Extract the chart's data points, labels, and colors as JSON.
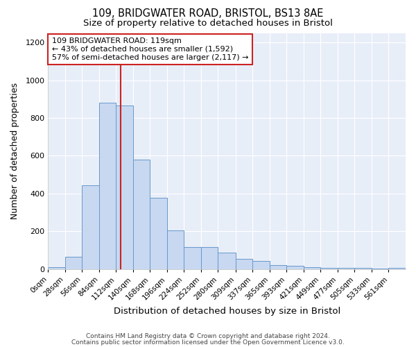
{
  "title1": "109, BRIDGWATER ROAD, BRISTOL, BS13 8AE",
  "title2": "Size of property relative to detached houses in Bristol",
  "xlabel": "Distribution of detached houses by size in Bristol",
  "ylabel": "Number of detached properties",
  "bar_labels": [
    "0sqm",
    "28sqm",
    "56sqm",
    "84sqm",
    "112sqm",
    "140sqm",
    "168sqm",
    "196sqm",
    "224sqm",
    "252sqm",
    "280sqm",
    "309sqm",
    "337sqm",
    "365sqm",
    "393sqm",
    "421sqm",
    "449sqm",
    "477sqm",
    "505sqm",
    "533sqm",
    "561sqm"
  ],
  "bar_values": [
    10,
    65,
    445,
    880,
    865,
    580,
    378,
    205,
    115,
    115,
    88,
    55,
    42,
    22,
    18,
    10,
    8,
    8,
    5,
    3,
    5
  ],
  "bar_color": "#c8d8f0",
  "bar_edge_color": "#6699cc",
  "red_line_x": 119,
  "bins_start": [
    0,
    28,
    56,
    84,
    112,
    140,
    168,
    196,
    224,
    252,
    280,
    309,
    337,
    365,
    393,
    421,
    449,
    477,
    505,
    533,
    561
  ],
  "ylim": [
    0,
    1250
  ],
  "yticks": [
    0,
    200,
    400,
    600,
    800,
    1000,
    1200
  ],
  "annotation_text": "109 BRIDGWATER ROAD: 119sqm\n← 43% of detached houses are smaller (1,592)\n57% of semi-detached houses are larger (2,117) →",
  "annotation_box_color": "#ffffff",
  "annotation_border_color": "#cc2222",
  "background_color": "#ffffff",
  "plot_bg_color": "#e8eef8",
  "grid_color": "#ffffff",
  "footer_line1": "Contains HM Land Registry data © Crown copyright and database right 2024.",
  "footer_line2": "Contains public sector information licensed under the Open Government Licence v3.0."
}
